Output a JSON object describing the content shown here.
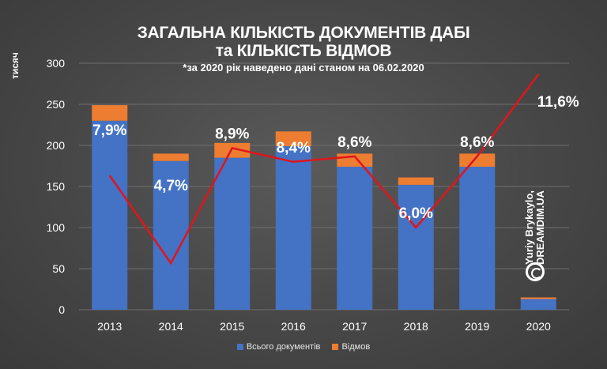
{
  "title_line1": "ЗАГАЛЬНА КІЛЬКІСТЬ ДОКУМЕНТІВ ДАБІ",
  "title_line2": "та КІЛЬКІСТЬ ВІДМОВ",
  "subtitle": "*за 2020 рік наведено дані станом на 06.02.2020",
  "credit": "Yuriy Brykaylo,\nDREAMDIM.UA",
  "colors": {
    "total": "#4472C4",
    "refusals": "#ED7D31",
    "line": "#E0151B",
    "text": "#FFFFFF",
    "grid": "#6E6E6E"
  },
  "chart_data": {
    "type": "bar",
    "stacked": true,
    "categories": [
      "2013",
      "2014",
      "2015",
      "2016",
      "2017",
      "2018",
      "2019",
      "2020"
    ],
    "series": [
      {
        "name": "Всього документів",
        "values": [
          230,
          181,
          185,
          199,
          174,
          152,
          174,
          13
        ]
      },
      {
        "name": "Відмов",
        "values": [
          19,
          9,
          18,
          18,
          16,
          9,
          16,
          2
        ]
      }
    ],
    "line": {
      "values_pct": [
        7.9,
        4.7,
        8.9,
        8.4,
        8.6,
        6.0,
        8.6,
        11.6
      ],
      "labels": [
        "7,9%",
        "4,7%",
        "8,9%",
        "8,4%",
        "8,6%",
        "6,0%",
        "8,6%",
        "11,6%"
      ],
      "scale_pct": [
        3.0,
        12.0
      ]
    },
    "ylabel": "тисяч",
    "ylim": [
      0,
      300
    ],
    "yticks": [
      "0",
      "50",
      "100",
      "150",
      "200",
      "250",
      "300"
    ],
    "grid": true,
    "legend_position": "bottom"
  }
}
